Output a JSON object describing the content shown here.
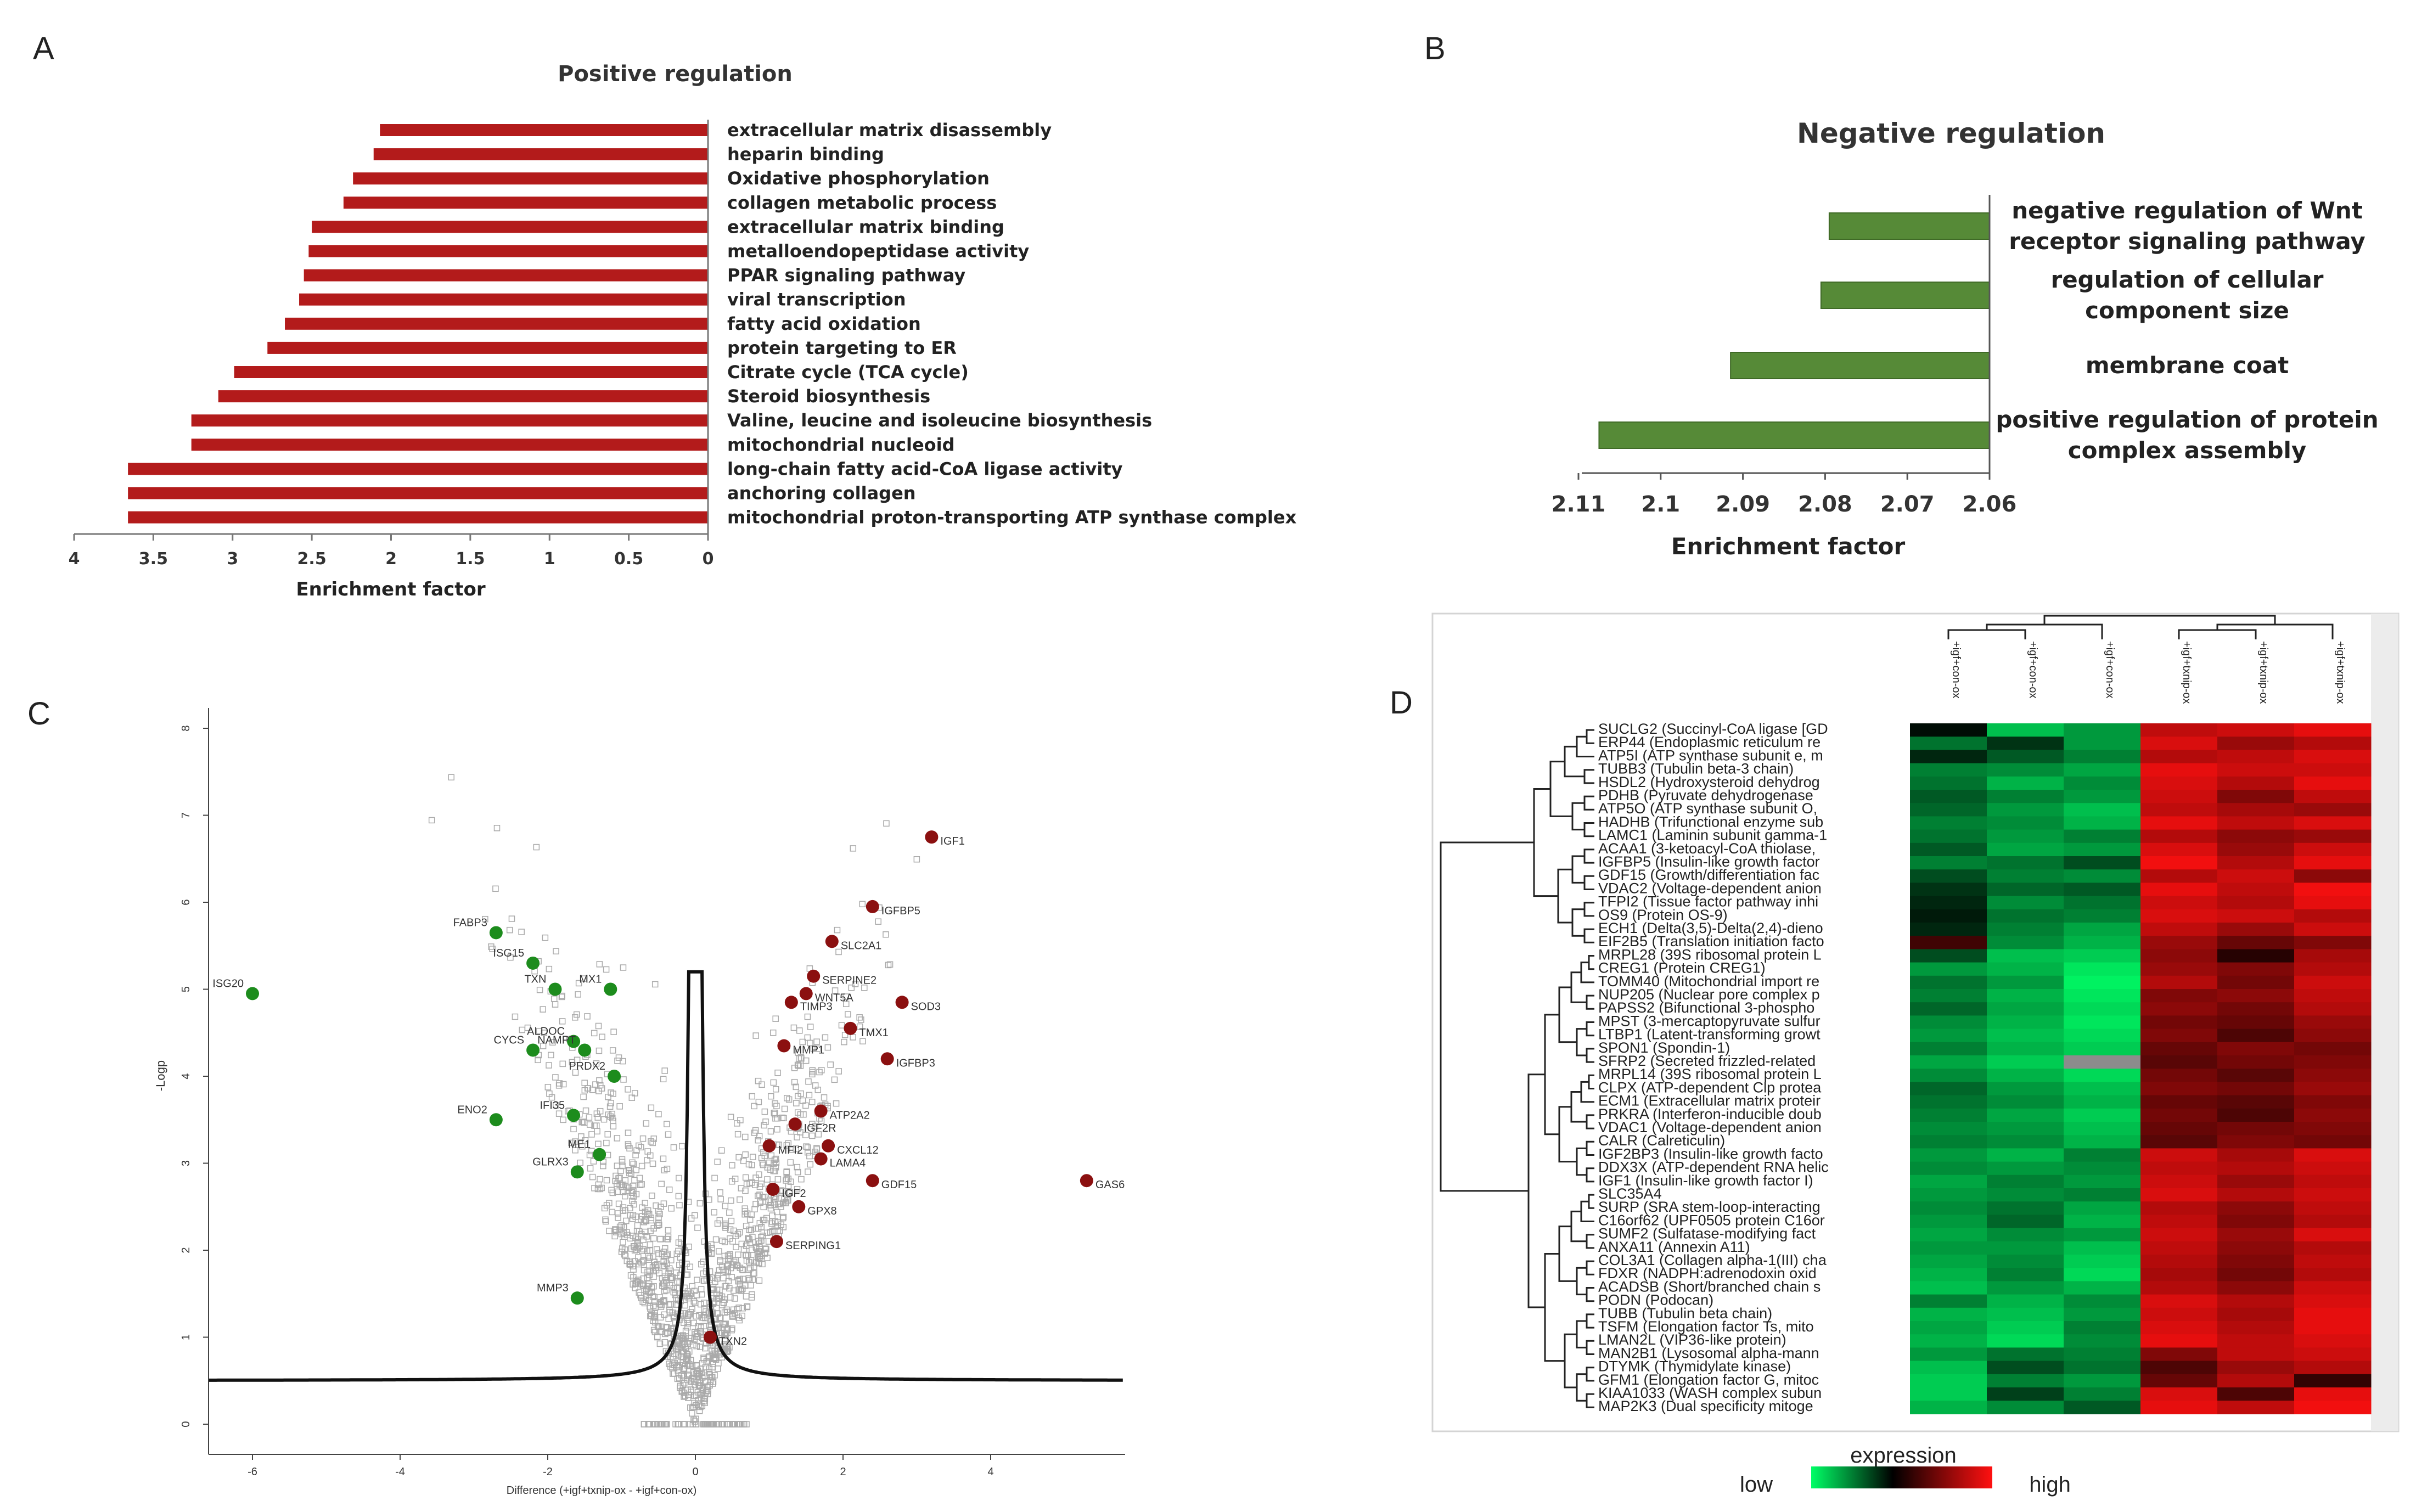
{
  "panel_labels": [
    "A",
    "B",
    "C",
    "D"
  ],
  "chart_data": [
    {
      "panel": "A",
      "type": "bar",
      "orientation": "horizontal",
      "title": "Positive regulation",
      "xlabel": "Enrichment factor",
      "xlim": [
        4,
        0
      ],
      "xticks": [
        "4",
        "3.5",
        "3",
        "2.5",
        "2",
        "1.5",
        "1",
        "0.5",
        "0"
      ],
      "bar_color": "#b31b1b",
      "categories": [
        "extracellular matrix disassembly",
        "heparin binding",
        "Oxidative phosphorylation",
        "collagen metabolic process",
        "extracellular matrix binding",
        "metalloendopeptidase activity",
        "PPAR signaling pathway",
        "viral transcription",
        "fatty acid oxidation",
        "protein targeting to ER",
        "Citrate cycle (TCA cycle)",
        "Steroid biosynthesis",
        "Valine, leucine and isoleucine biosynthesis",
        "mitochondrial nucleoid",
        "long-chain fatty acid-CoA ligase activity",
        "anchoring collagen",
        "mitochondrial proton-transporting ATP synthase complex"
      ],
      "values": [
        2.07,
        2.11,
        2.24,
        2.3,
        2.5,
        2.52,
        2.55,
        2.58,
        2.67,
        2.78,
        2.99,
        3.09,
        3.26,
        3.26,
        3.66,
        3.66,
        3.66
      ]
    },
    {
      "panel": "B",
      "type": "bar",
      "orientation": "horizontal",
      "title": "Negative regulation",
      "xlabel": "Enrichment factor",
      "xlim": [
        2.113,
        2.06
      ],
      "xticks": [
        "2.11",
        "2.1",
        "2.09",
        "2.08",
        "2.07",
        "2.06"
      ],
      "bar_color": "#568a37",
      "categories": [
        [
          "negative regulation of Wnt",
          "receptor signaling pathway"
        ],
        [
          "regulation of cellular",
          "component size"
        ],
        [
          "membrane coat"
        ],
        [
          "positive regulation of protein",
          "complex assembly"
        ]
      ],
      "values": [
        2.0795,
        2.0805,
        2.0915,
        2.1075
      ]
    },
    {
      "panel": "C",
      "type": "scatter",
      "title": "",
      "xlabel": "Difference (+igf+txnip-ox - +igf+con-ox)",
      "ylabel": "-Logp",
      "xlim": [
        -6.6,
        5.8
      ],
      "ylim": [
        -0.4,
        8.3
      ],
      "xticks": [
        "-6",
        "-4",
        "-2",
        "0",
        "2",
        "4"
      ],
      "yticks": [
        "0",
        "1",
        "2",
        "3",
        "4",
        "5",
        "6",
        "7",
        "8"
      ],
      "up_color": "#8b1010",
      "down_color": "#1d8c1d",
      "background_color": "#aaaaaa",
      "up": [
        {
          "label": "IGF1",
          "x": 3.2,
          "y": 6.75
        },
        {
          "label": "IGFBP5",
          "x": 2.4,
          "y": 5.95
        },
        {
          "label": "SLC2A1",
          "x": 1.85,
          "y": 5.55
        },
        {
          "label": "SERPINE2",
          "x": 1.6,
          "y": 5.15
        },
        {
          "label": "WNT5A",
          "x": 1.5,
          "y": 4.95
        },
        {
          "label": "SOD3",
          "x": 2.8,
          "y": 4.85
        },
        {
          "label": "TIMP3",
          "x": 1.3,
          "y": 4.85
        },
        {
          "label": "TMX1",
          "x": 2.1,
          "y": 4.55
        },
        {
          "label": "MMP1",
          "x": 1.2,
          "y": 4.35
        },
        {
          "label": "IGFBP3",
          "x": 2.6,
          "y": 4.2
        },
        {
          "label": "ATP2A2",
          "x": 1.7,
          "y": 3.6
        },
        {
          "label": "IGF2R",
          "x": 1.35,
          "y": 3.45
        },
        {
          "label": "CXCL12",
          "x": 1.8,
          "y": 3.2
        },
        {
          "label": "MFI2",
          "x": 1.0,
          "y": 3.2
        },
        {
          "label": "LAMA4",
          "x": 1.7,
          "y": 3.05
        },
        {
          "label": "GDF15",
          "x": 2.4,
          "y": 2.8
        },
        {
          "label": "GAS6",
          "x": 5.3,
          "y": 2.8
        },
        {
          "label": "IGF2",
          "x": 1.05,
          "y": 2.7
        },
        {
          "label": "GPX8",
          "x": 1.4,
          "y": 2.5
        },
        {
          "label": "SERPING1",
          "x": 1.1,
          "y": 2.1
        },
        {
          "label": "TXN2",
          "x": 0.2,
          "y": 1.0
        }
      ],
      "down": [
        {
          "label": "ISG20",
          "x": -6.0,
          "y": 4.95
        },
        {
          "label": "FABP3",
          "x": -2.7,
          "y": 5.65
        },
        {
          "label": "ISG15",
          "x": -2.2,
          "y": 5.3
        },
        {
          "label": "TXN",
          "x": -1.9,
          "y": 5.0
        },
        {
          "label": "MX1",
          "x": -1.15,
          "y": 5.0
        },
        {
          "label": "ALDOC",
          "x": -1.65,
          "y": 4.4
        },
        {
          "label": "CYCS",
          "x": -2.2,
          "y": 4.3
        },
        {
          "label": "NAMPT",
          "x": -1.5,
          "y": 4.3
        },
        {
          "label": "PRDX2",
          "x": -1.1,
          "y": 4.0
        },
        {
          "label": "ENO2",
          "x": -2.7,
          "y": 3.5
        },
        {
          "label": "IFI35",
          "x": -1.65,
          "y": 3.55
        },
        {
          "label": "ME1",
          "x": -1.3,
          "y": 3.1
        },
        {
          "label": "GLRX3",
          "x": -1.6,
          "y": 2.9
        },
        {
          "label": "MMP3",
          "x": -1.6,
          "y": 1.45
        }
      ]
    },
    {
      "panel": "D",
      "type": "heatmap",
      "legend_title": "expression",
      "legend_low": "low",
      "legend_high": "high",
      "columns": [
        "+igf+con-ox",
        "+igf+con-ox",
        "+igf+con-ox",
        "+igf+txnip-ox",
        "+igf+txnip-ox",
        "+igf+txnip-ox"
      ],
      "rows": [
        "SUCLG2 (Succinyl-CoA ligase [GD",
        "ERP44 (Endoplasmic reticulum re",
        "ATP5I (ATP synthase subunit e, m",
        "TUBB3 (Tubulin beta-3 chain)",
        "HSDL2 (Hydroxysteroid dehydrog",
        "PDHB (Pyruvate dehydrogenase",
        "ATP5O (ATP synthase subunit O,",
        "HADHB (Trifunctional enzyme sub",
        "LAMC1 (Laminin subunit gamma-1",
        "ACAA1 (3-ketoacyl-CoA thiolase,",
        "IGFBP5 (Insulin-like growth factor",
        "GDF15 (Growth/differentiation fac",
        "VDAC2 (Voltage-dependent anion",
        "TFPI2 (Tissue factor pathway inhi",
        "OS9 (Protein OS-9)",
        "ECH1 (Delta(3,5)-Delta(2,4)-dieno",
        "EIF2B5 (Translation initiation facto",
        "MRPL28 (39S ribosomal protein L",
        "CREG1 (Protein CREG1)",
        "TOMM40 (Mitochondrial import re",
        "NUP205 (Nuclear pore complex p",
        "PAPSS2 (Bifunctional 3-phospho",
        "MPST (3-mercaptopyruvate sulfur",
        "LTBP1 (Latent-transforming growt",
        "SPON1 (Spondin-1)",
        "SFRP2 (Secreted frizzled-related",
        "MRPL14 (39S ribosomal protein L",
        "CLPX (ATP-dependent Clp protea",
        "ECM1 (Extracellular matrix proteir",
        "PRKRA (Interferon-inducible doub",
        "VDAC1 (Voltage-dependent anion",
        "CALR (Calreticulin)",
        "IGF2BP3 (Insulin-like growth facto",
        "DDX3X (ATP-dependent RNA helic",
        "IGF1 (Insulin-like growth factor I)",
        "SLC35A4",
        "SURP (SRA stem-loop-interacting",
        "C16orf62 (UPF0505 protein C16or",
        "SUMF2 (Sulfatase-modifying fact",
        "ANXA11 (Annexin A11)",
        "COL3A1 (Collagen alpha-1(III) cha",
        "FDXR (NADPH:adrenodoxin oxid",
        "ACADSB (Short/branched chain s",
        "PODN (Podocan)",
        "TUBB (Tubulin beta chain)",
        "TSFM (Elongation factor Ts, mito",
        "LMAN2L (VIP36-like protein)",
        "MAN2B1 (Lysosomal alpha-mann",
        "DTYMK (Thymidylate kinase)",
        "GFM1 (Elongation factor G, mitoc",
        "KIAA1033 (WASH complex subun",
        "MAP2K3 (Dual specificity mitoge"
      ],
      "values": [
        [
          -0.05,
          -0.75,
          -0.6,
          0.75,
          0.8,
          0.9
        ],
        [
          -0.45,
          -0.2,
          -0.6,
          0.85,
          0.6,
          0.7
        ],
        [
          -0.15,
          -0.35,
          -0.5,
          0.7,
          0.75,
          0.85
        ],
        [
          -0.5,
          -0.55,
          -0.65,
          0.9,
          0.8,
          0.8
        ],
        [
          -0.45,
          -0.7,
          -0.55,
          0.85,
          0.7,
          0.9
        ],
        [
          -0.35,
          -0.5,
          -0.6,
          0.8,
          0.5,
          0.75
        ],
        [
          -0.4,
          -0.6,
          -0.75,
          0.75,
          0.65,
          0.6
        ],
        [
          -0.5,
          -0.55,
          -0.7,
          0.9,
          0.75,
          0.85
        ],
        [
          -0.45,
          -0.6,
          -0.5,
          0.7,
          0.55,
          0.6
        ],
        [
          -0.35,
          -0.65,
          -0.6,
          0.85,
          0.6,
          0.8
        ],
        [
          -0.5,
          -0.45,
          -0.3,
          0.95,
          0.7,
          0.9
        ],
        [
          -0.3,
          -0.5,
          -0.55,
          0.7,
          0.8,
          0.55
        ],
        [
          -0.2,
          -0.4,
          -0.35,
          0.9,
          0.75,
          0.95
        ],
        [
          -0.15,
          -0.55,
          -0.45,
          0.8,
          0.7,
          0.9
        ],
        [
          -0.1,
          -0.45,
          -0.5,
          0.85,
          0.8,
          0.7
        ],
        [
          -0.15,
          -0.5,
          -0.65,
          0.75,
          0.6,
          0.8
        ],
        [
          0.25,
          -0.55,
          -0.7,
          0.6,
          0.4,
          0.5
        ],
        [
          -0.3,
          -0.75,
          -0.8,
          0.55,
          0.15,
          0.65
        ],
        [
          -0.6,
          -0.7,
          -0.9,
          0.6,
          0.5,
          0.7
        ],
        [
          -0.45,
          -0.6,
          -0.95,
          0.7,
          0.45,
          0.8
        ],
        [
          -0.5,
          -0.7,
          -0.9,
          0.5,
          0.55,
          0.75
        ],
        [
          -0.4,
          -0.65,
          -0.85,
          0.55,
          0.45,
          0.7
        ],
        [
          -0.55,
          -0.7,
          -0.9,
          0.45,
          0.4,
          0.6
        ],
        [
          -0.6,
          -0.75,
          -0.85,
          0.5,
          0.3,
          0.55
        ],
        [
          -0.5,
          -0.7,
          -0.8,
          0.4,
          0.5,
          0.45
        ],
        [
          -0.65,
          -0.8,
          null,
          0.35,
          0.45,
          0.5
        ],
        [
          -0.55,
          -0.7,
          -0.85,
          0.45,
          0.35,
          0.55
        ],
        [
          -0.4,
          -0.6,
          -0.75,
          0.5,
          0.45,
          0.6
        ],
        [
          -0.45,
          -0.55,
          -0.7,
          0.4,
          0.35,
          0.5
        ],
        [
          -0.5,
          -0.65,
          -0.8,
          0.45,
          0.3,
          0.55
        ],
        [
          -0.55,
          -0.6,
          -0.75,
          0.4,
          0.45,
          0.5
        ],
        [
          -0.5,
          -0.55,
          -0.7,
          0.35,
          0.5,
          0.45
        ],
        [
          -0.6,
          -0.7,
          -0.5,
          0.8,
          0.65,
          0.85
        ],
        [
          -0.55,
          -0.6,
          -0.55,
          0.75,
          0.7,
          0.8
        ],
        [
          -0.65,
          -0.5,
          -0.6,
          0.8,
          0.6,
          0.75
        ],
        [
          -0.6,
          -0.55,
          -0.5,
          0.85,
          0.7,
          0.8
        ],
        [
          -0.55,
          -0.45,
          -0.65,
          0.7,
          0.55,
          0.75
        ],
        [
          -0.6,
          -0.4,
          -0.7,
          0.75,
          0.5,
          0.7
        ],
        [
          -0.65,
          -0.55,
          -0.6,
          0.8,
          0.6,
          0.85
        ],
        [
          -0.6,
          -0.6,
          -0.75,
          0.75,
          0.55,
          0.7
        ],
        [
          -0.65,
          -0.55,
          -0.8,
          0.7,
          0.5,
          0.75
        ],
        [
          -0.7,
          -0.5,
          -0.85,
          0.65,
          0.45,
          0.7
        ],
        [
          -0.75,
          -0.6,
          -0.7,
          0.7,
          0.55,
          0.8
        ],
        [
          -0.5,
          -0.7,
          -0.55,
          0.85,
          0.7,
          0.85
        ],
        [
          -0.7,
          -0.75,
          -0.6,
          0.8,
          0.65,
          0.9
        ],
        [
          -0.65,
          -0.8,
          -0.5,
          0.85,
          0.7,
          0.9
        ],
        [
          -0.7,
          -0.85,
          -0.55,
          0.9,
          0.75,
          0.85
        ],
        [
          -0.6,
          -0.45,
          -0.5,
          0.5,
          0.75,
          0.8
        ],
        [
          -0.75,
          -0.3,
          -0.45,
          0.3,
          0.6,
          0.7
        ],
        [
          -0.8,
          -0.5,
          -0.6,
          0.4,
          0.7,
          0.2
        ],
        [
          -0.8,
          -0.25,
          -0.5,
          0.85,
          0.3,
          0.9
        ],
        [
          -0.7,
          -0.55,
          -0.35,
          0.9,
          0.75,
          0.95
        ]
      ]
    }
  ]
}
